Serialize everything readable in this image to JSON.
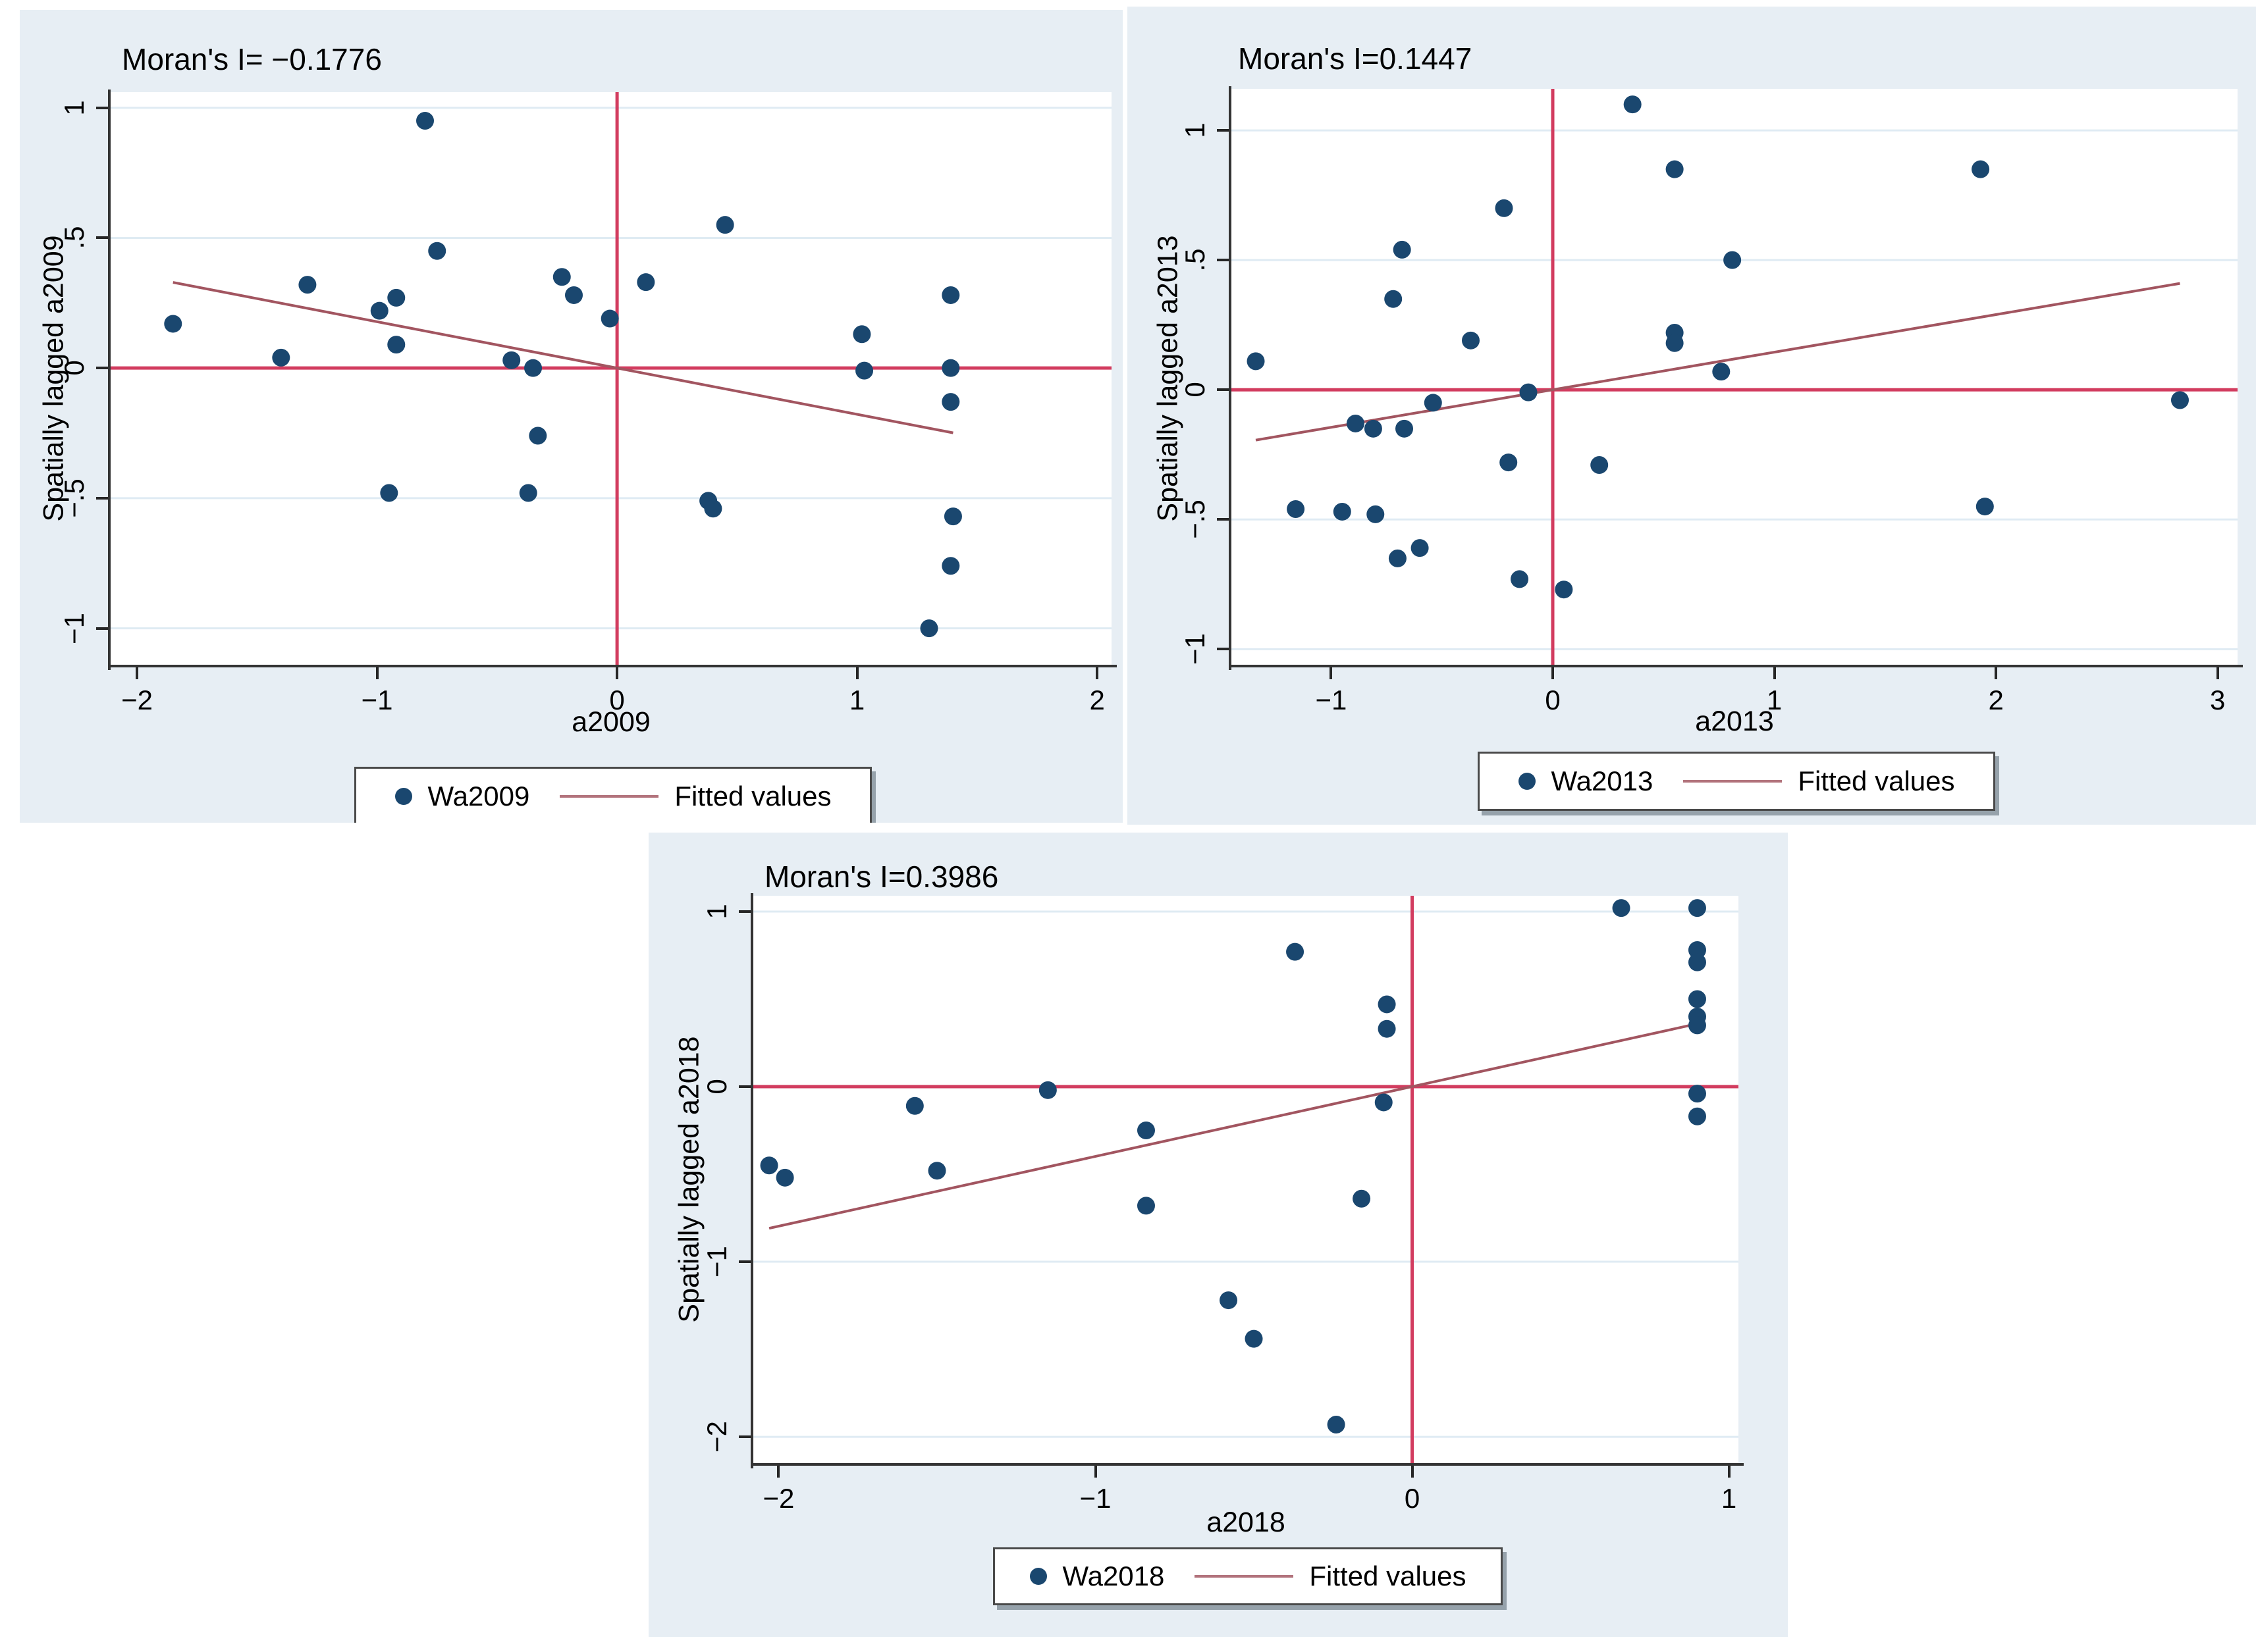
{
  "colors": {
    "graph_background": "#e7eef4",
    "plot_background": "#ffffff",
    "gridline": "#dfebf3",
    "point": "#1a476f",
    "fitted_line": "#a25560",
    "reference_line": "#d23c5f",
    "axis": "#333333",
    "text": "#000000"
  },
  "chart_data": [
    {
      "type": "scatter",
      "title": "Moran's I= −0.1776",
      "moran_i": -0.1776,
      "xlabel": "a2009",
      "ylabel": "Spatially lagged a2009",
      "legend": [
        {
          "label": "Wa2009",
          "marker": "dot"
        },
        {
          "label": "Fitted values",
          "marker": "line"
        }
      ],
      "legend_position": "bottom-center",
      "grid": "horizontal",
      "xlim": [
        -2.11,
        2.06
      ],
      "ylim": [
        -1.14,
        1.06
      ],
      "xticks": [
        -2,
        -1,
        0,
        1,
        2
      ],
      "xtick_labels": [
        "−2",
        "−1",
        "0",
        "1",
        "2"
      ],
      "yticks": [
        -1,
        -0.5,
        0,
        0.5,
        1
      ],
      "ytick_labels": [
        "−1",
        "−.5",
        "0",
        ".5",
        "1"
      ],
      "reference_lines": {
        "vertical_x": 0,
        "horizontal_y": 0
      },
      "fit_line": {
        "x1": -1.85,
        "y1": 0.329,
        "x2": 1.4,
        "y2": -0.249
      },
      "points": [
        [
          -1.85,
          0.17
        ],
        [
          -1.4,
          0.04
        ],
        [
          -1.29,
          0.32
        ],
        [
          -0.99,
          0.22
        ],
        [
          -0.92,
          0.27
        ],
        [
          -0.92,
          0.09
        ],
        [
          -0.95,
          -0.48
        ],
        [
          -0.8,
          0.95
        ],
        [
          -0.75,
          0.45
        ],
        [
          -0.44,
          0.03
        ],
        [
          -0.35,
          0.0
        ],
        [
          -0.33,
          -0.26
        ],
        [
          -0.37,
          -0.48
        ],
        [
          -0.23,
          0.35
        ],
        [
          -0.18,
          0.28
        ],
        [
          -0.03,
          0.19
        ],
        [
          0.12,
          0.33
        ],
        [
          0.38,
          -0.51
        ],
        [
          0.4,
          -0.54
        ],
        [
          0.45,
          0.55
        ],
        [
          1.02,
          0.13
        ],
        [
          1.03,
          -0.01
        ],
        [
          1.39,
          0.28
        ],
        [
          1.39,
          0.0
        ],
        [
          1.39,
          -0.13
        ],
        [
          1.4,
          -0.57
        ],
        [
          1.39,
          -0.76
        ],
        [
          1.3,
          -1.0
        ]
      ]
    },
    {
      "type": "scatter",
      "title": "Moran's I=0.1447",
      "moran_i": 0.1447,
      "xlabel": "a2013",
      "ylabel": "Spatially lagged a2013",
      "legend": [
        {
          "label": "Wa2013",
          "marker": "dot"
        },
        {
          "label": "Fitted values",
          "marker": "line"
        }
      ],
      "legend_position": "bottom-center",
      "grid": "horizontal",
      "xlim": [
        -1.45,
        3.09
      ],
      "ylim": [
        -1.06,
        1.16
      ],
      "xticks": [
        -1,
        0,
        1,
        2,
        3
      ],
      "xtick_labels": [
        "−1",
        "0",
        "1",
        "2",
        "3"
      ],
      "yticks": [
        -1,
        -0.5,
        0,
        0.5,
        1
      ],
      "ytick_labels": [
        "−1",
        "−.5",
        "0",
        ".5",
        "1"
      ],
      "reference_lines": {
        "vertical_x": 0,
        "horizontal_y": 0
      },
      "fit_line": {
        "x1": -1.34,
        "y1": -0.194,
        "x2": 2.83,
        "y2": 0.41
      },
      "points": [
        [
          -1.34,
          0.11
        ],
        [
          -1.16,
          -0.46
        ],
        [
          -0.95,
          -0.47
        ],
        [
          -0.89,
          -0.13
        ],
        [
          -0.81,
          -0.15
        ],
        [
          -0.8,
          -0.48
        ],
        [
          -0.72,
          0.35
        ],
        [
          -0.68,
          0.54
        ],
        [
          -0.67,
          -0.15
        ],
        [
          -0.7,
          -0.65
        ],
        [
          -0.6,
          -0.61
        ],
        [
          -0.54,
          -0.05
        ],
        [
          -0.37,
          0.19
        ],
        [
          -0.22,
          0.7
        ],
        [
          -0.2,
          -0.28
        ],
        [
          -0.15,
          -0.73
        ],
        [
          -0.11,
          -0.01
        ],
        [
          0.05,
          -0.77
        ],
        [
          0.21,
          -0.29
        ],
        [
          0.36,
          1.1
        ],
        [
          0.55,
          0.85
        ],
        [
          0.55,
          0.22
        ],
        [
          0.55,
          0.18
        ],
        [
          0.76,
          0.07
        ],
        [
          0.81,
          0.5
        ],
        [
          1.93,
          0.85
        ],
        [
          1.95,
          -0.45
        ],
        [
          2.83,
          -0.04
        ]
      ]
    },
    {
      "type": "scatter",
      "title": "Moran's I=0.3986",
      "moran_i": 0.3986,
      "xlabel": "a2018",
      "ylabel": "Spatially lagged a2018",
      "legend": [
        {
          "label": "Wa2018",
          "marker": "dot"
        },
        {
          "label": "Fitted values",
          "marker": "line"
        }
      ],
      "legend_position": "bottom-center",
      "grid": "horizontal",
      "xlim": [
        -2.08,
        1.03
      ],
      "ylim": [
        -2.15,
        1.09
      ],
      "xticks": [
        -2,
        -1,
        0,
        1
      ],
      "xtick_labels": [
        "−2",
        "−1",
        "0",
        "1"
      ],
      "yticks": [
        -2,
        -1,
        0,
        1
      ],
      "ytick_labels": [
        "−2",
        "−1",
        "0",
        "1"
      ],
      "reference_lines": {
        "vertical_x": 0,
        "horizontal_y": 0
      },
      "fit_line": {
        "x1": -2.03,
        "y1": -0.809,
        "x2": 0.9,
        "y2": 0.359
      },
      "points": [
        [
          -2.03,
          -0.45
        ],
        [
          -1.98,
          -0.52
        ],
        [
          -1.57,
          -0.11
        ],
        [
          -1.5,
          -0.48
        ],
        [
          -1.15,
          -0.02
        ],
        [
          -0.84,
          -0.25
        ],
        [
          -0.84,
          -0.68
        ],
        [
          -0.58,
          -1.22
        ],
        [
          -0.5,
          -1.44
        ],
        [
          -0.37,
          0.77
        ],
        [
          -0.24,
          -1.93
        ],
        [
          -0.16,
          -0.64
        ],
        [
          -0.09,
          -0.09
        ],
        [
          -0.08,
          0.47
        ],
        [
          -0.08,
          0.33
        ],
        [
          0.66,
          1.02
        ],
        [
          0.9,
          1.02
        ],
        [
          0.9,
          0.78
        ],
        [
          0.9,
          0.71
        ],
        [
          0.9,
          0.5
        ],
        [
          0.9,
          0.4
        ],
        [
          0.9,
          0.35
        ],
        [
          0.9,
          -0.04
        ],
        [
          0.9,
          -0.17
        ]
      ]
    }
  ]
}
